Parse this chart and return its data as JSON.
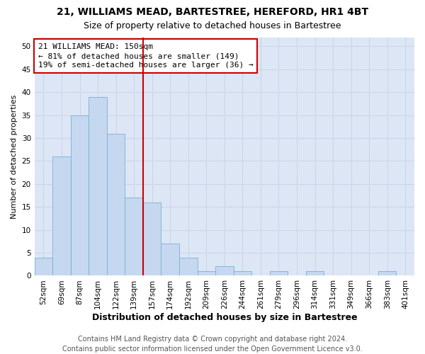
{
  "title1": "21, WILLIAMS MEAD, BARTESTREE, HEREFORD, HR1 4BT",
  "title2": "Size of property relative to detached houses in Bartestree",
  "xlabel": "Distribution of detached houses by size in Bartestree",
  "ylabel": "Number of detached properties",
  "bar_labels": [
    "52sqm",
    "69sqm",
    "87sqm",
    "104sqm",
    "122sqm",
    "139sqm",
    "157sqm",
    "174sqm",
    "192sqm",
    "209sqm",
    "226sqm",
    "244sqm",
    "261sqm",
    "279sqm",
    "296sqm",
    "314sqm",
    "331sqm",
    "349sqm",
    "366sqm",
    "383sqm",
    "401sqm"
  ],
  "bar_values": [
    4,
    26,
    35,
    39,
    31,
    17,
    16,
    7,
    4,
    1,
    2,
    1,
    0,
    1,
    0,
    1,
    0,
    0,
    0,
    1,
    0
  ],
  "bar_color": "#c5d8f0",
  "bar_edge_color": "#7aafd4",
  "vline_x_idx": 6,
  "vline_color": "#cc0000",
  "annotation_line1": "21 WILLIAMS MEAD: 150sqm",
  "annotation_line2": "← 81% of detached houses are smaller (149)",
  "annotation_line3": "19% of semi-detached houses are larger (36) →",
  "annotation_box_color": "#cc0000",
  "ylim": [
    0,
    52
  ],
  "yticks": [
    0,
    5,
    10,
    15,
    20,
    25,
    30,
    35,
    40,
    45,
    50
  ],
  "grid_color": "#c8d4e8",
  "bg_color": "#dce6f5",
  "footer1": "Contains HM Land Registry data © Crown copyright and database right 2024.",
  "footer2": "Contains public sector information licensed under the Open Government Licence v3.0.",
  "title1_fontsize": 10,
  "title2_fontsize": 9,
  "xlabel_fontsize": 9,
  "ylabel_fontsize": 8,
  "tick_fontsize": 7.5,
  "annotation_fontsize": 8,
  "footer_fontsize": 7
}
